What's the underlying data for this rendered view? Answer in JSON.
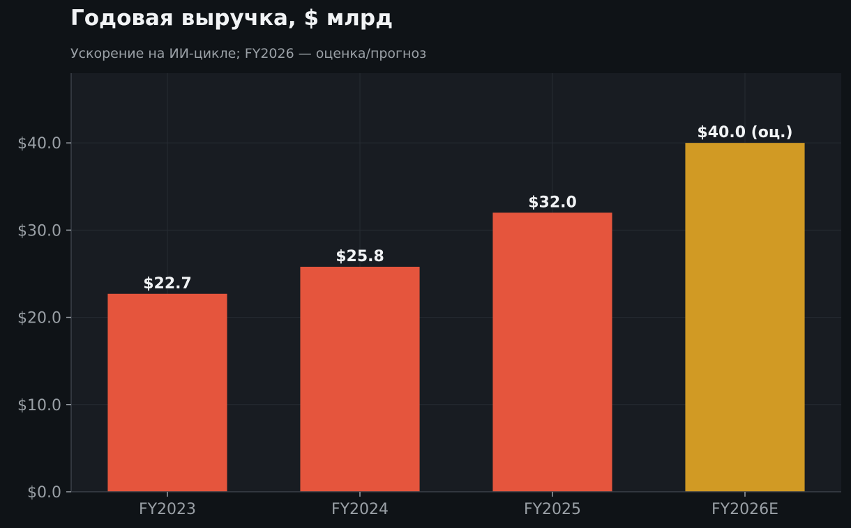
{
  "chart_data": {
    "type": "bar",
    "title": "Годовая выручка, $ млрд",
    "subtitle": "Ускорение на ИИ-цикле; FY2026 — оценка/прогноз",
    "xlabel": "",
    "ylabel": "",
    "categories": [
      "FY2023",
      "FY2024",
      "FY2025",
      "FY2026E"
    ],
    "values": [
      22.7,
      25.8,
      32.0,
      40.0
    ],
    "data_labels": [
      "$22.7",
      "$25.8",
      "$32.0",
      "$40.0 (оц.)"
    ],
    "bar_colors": [
      "#e5553d",
      "#e5553d",
      "#e5553d",
      "#d19a24"
    ],
    "ylim": [
      0,
      48
    ],
    "yticks": [
      0,
      10,
      20,
      30,
      40
    ],
    "ytick_labels": [
      "$0.0",
      "$10.0",
      "$20.0",
      "$30.0",
      "$40.0"
    ],
    "grid": true,
    "legend": "none"
  },
  "colors": {
    "background": "#0f1317",
    "plot_background": "#181c22",
    "grid": "#262b33",
    "axis": "#3a4049",
    "actual_bar": "#e5553d",
    "estimate_bar": "#d19a24"
  }
}
